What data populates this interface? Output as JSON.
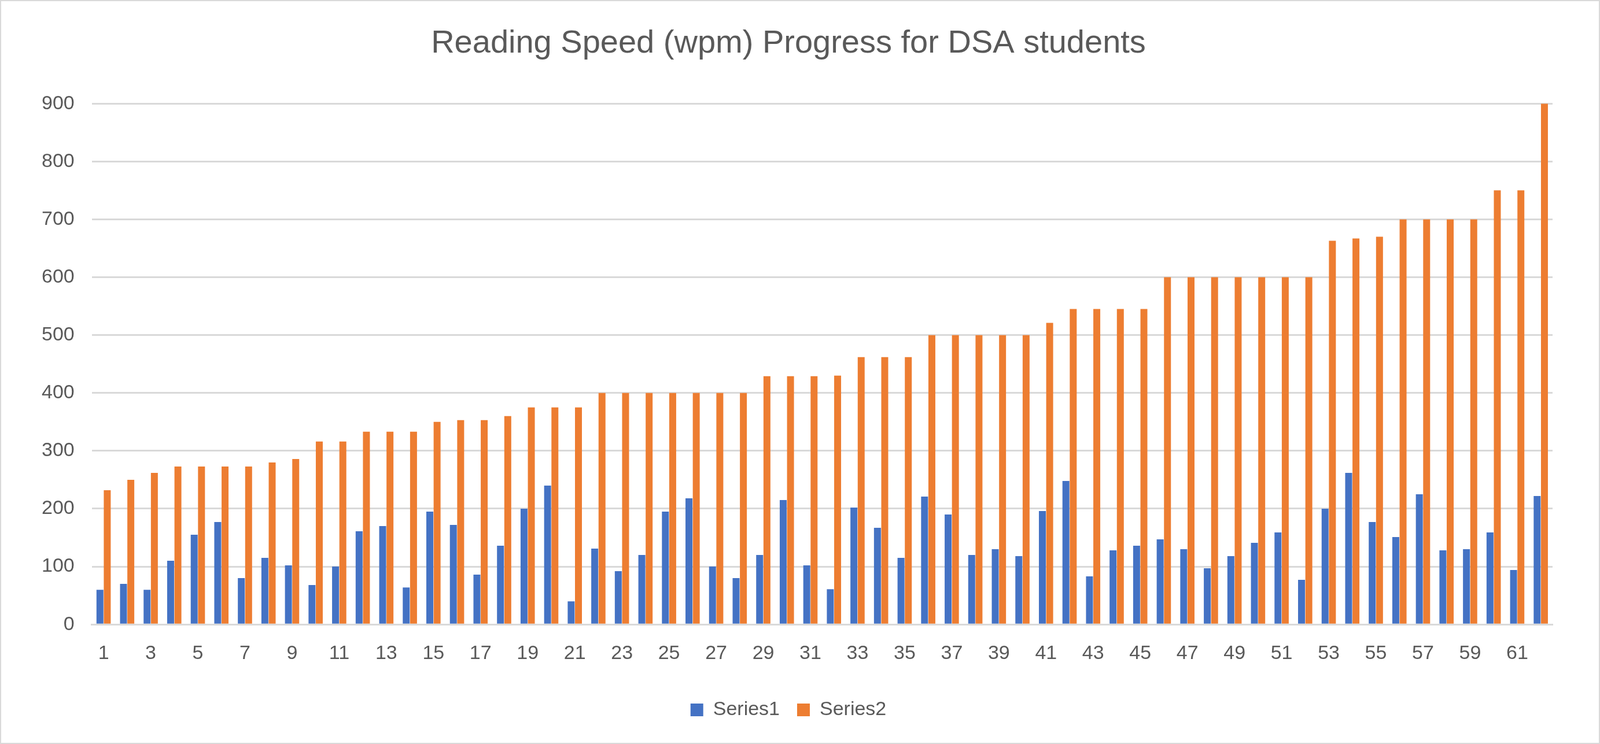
{
  "chart_data": {
    "type": "bar",
    "title": "Reading Speed (wpm) Progress for DSA students",
    "categories": [
      "1",
      null,
      "3",
      null,
      "5",
      null,
      "7",
      null,
      "9",
      null,
      "11",
      null,
      "13",
      null,
      "15",
      null,
      "17",
      null,
      "19",
      null,
      "21",
      null,
      "23",
      null,
      "25",
      null,
      "27",
      null,
      "29",
      null,
      "31",
      null,
      "33",
      null,
      "35",
      null,
      "37",
      null,
      "39",
      null,
      "41",
      null,
      "43",
      null,
      "45",
      null,
      "47",
      null,
      "49",
      null,
      "51",
      null,
      "53",
      null,
      "55",
      null,
      "57",
      null,
      "59",
      null,
      "61",
      null
    ],
    "series": [
      {
        "name": "Series1",
        "color": "#4472c4",
        "values": [
          60,
          70,
          60,
          110,
          155,
          177,
          80,
          115,
          102,
          68,
          100,
          161,
          170,
          64,
          195,
          172,
          86,
          136,
          200,
          240,
          40,
          131,
          92,
          120,
          195,
          218,
          100,
          80,
          120,
          215,
          102,
          61,
          202,
          167,
          115,
          221,
          190,
          120,
          130,
          118,
          196,
          248,
          83,
          128,
          136,
          147,
          130,
          97,
          118,
          141,
          159,
          77,
          200,
          262,
          177,
          151,
          225,
          128,
          130,
          159,
          94,
          222
        ]
      },
      {
        "name": "Series2",
        "color": "#ed7d31",
        "values": [
          232,
          250,
          262,
          273,
          273,
          273,
          273,
          280,
          286,
          316,
          316,
          333,
          333,
          333,
          350,
          353,
          353,
          360,
          375,
          375,
          375,
          400,
          400,
          400,
          400,
          400,
          400,
          400,
          429,
          429,
          429,
          430,
          462,
          462,
          462,
          500,
          500,
          500,
          500,
          500,
          521,
          545,
          545,
          545,
          545,
          600,
          600,
          600,
          600,
          600,
          600,
          600,
          663,
          667,
          670,
          700,
          700,
          700,
          700,
          750,
          750,
          900
        ]
      }
    ],
    "ylim": [
      0,
      900
    ],
    "yticks": [
      0,
      100,
      200,
      300,
      400,
      500,
      600,
      700,
      800,
      900
    ],
    "grid": true,
    "legend": "bottom"
  }
}
